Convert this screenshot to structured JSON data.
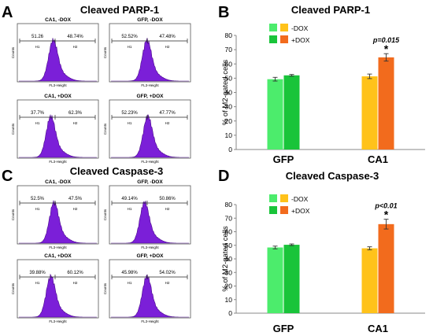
{
  "panels": [
    {
      "letter": "A",
      "title": "Cleaved PARP-1"
    },
    {
      "letter": "B",
      "title": "Cleaved PARP-1"
    },
    {
      "letter": "C",
      "title": "Cleaved Caspase-3"
    },
    {
      "letter": "D",
      "title": "Cleaved Caspase-3"
    }
  ],
  "histogram_axes": {
    "x_label": "FL3-Height",
    "y_label": "Counts",
    "gate_left": "H1",
    "gate_right": "H2"
  },
  "histograms": [
    {
      "panel": "A",
      "title": "CA1, -DOX",
      "left_pct": "51.26",
      "right_pct": "48.74%"
    },
    {
      "panel": "A",
      "title": "GFP, -DOX",
      "left_pct": "52.52%",
      "right_pct": "47.48%"
    },
    {
      "panel": "A",
      "title": "CA1, +DOX",
      "left_pct": "37.7%",
      "right_pct": "62.3%"
    },
    {
      "panel": "A",
      "title": "GFP, +DOX",
      "left_pct": "52.23%",
      "right_pct": "47.77%"
    },
    {
      "panel": "C",
      "title": "CA1, -DOX",
      "left_pct": "52.5%",
      "right_pct": "47.5%"
    },
    {
      "panel": "C",
      "title": "GFP, -DOX",
      "left_pct": "49.14%",
      "right_pct": "50.86%"
    },
    {
      "panel": "C",
      "title": "CA1, +DOX",
      "left_pct": "39.88%",
      "right_pct": "60.12%"
    },
    {
      "panel": "C",
      "title": "GFP, +DOX",
      "left_pct": "45.98%",
      "right_pct": "54.02%"
    }
  ],
  "legend": {
    "minus": "-DOX",
    "plus": "+DOX"
  },
  "colors": {
    "gfp_minus": "#4cec6c",
    "gfp_plus": "#19c43a",
    "ca1_minus": "#ffc21a",
    "ca1_plus": "#f26b1d",
    "histogram": "#7b1fd8",
    "histogram_dark": "#4a0a8a"
  },
  "chart_data": [
    {
      "type": "bar",
      "panel": "B",
      "title": "Cleaved PARP-1",
      "xlabel": "",
      "ylabel": "% of M2-gated cells",
      "ylim": [
        0,
        80
      ],
      "yticks": [
        0,
        10,
        20,
        30,
        40,
        50,
        60,
        70,
        80
      ],
      "categories": [
        "GFP",
        "CA1"
      ],
      "series": [
        {
          "name": "-DOX",
          "values": [
            49.3,
            51.3
          ],
          "errors": [
            1.3,
            1.6
          ]
        },
        {
          "name": "+DOX",
          "values": [
            52,
            64.6
          ],
          "errors": [
            0.6,
            2.6
          ]
        }
      ],
      "annotation": {
        "text": "p=0.015",
        "star": "*"
      },
      "legend": "top-left",
      "grid": false
    },
    {
      "type": "bar",
      "panel": "D",
      "title": "Cleaved Caspase-3",
      "xlabel": "",
      "ylabel": "% of M2-gated cells",
      "ylim": [
        0,
        80
      ],
      "yticks": [
        0,
        10,
        20,
        30,
        40,
        50,
        60,
        70,
        80
      ],
      "categories": [
        "GFP",
        "CA1"
      ],
      "series": [
        {
          "name": "-DOX",
          "values": [
            48.4,
            47.8
          ],
          "errors": [
            1,
            1.1
          ]
        },
        {
          "name": "+DOX",
          "values": [
            50.4,
            65.6
          ],
          "errors": [
            0.6,
            3.6
          ]
        }
      ],
      "annotation": {
        "text": "p<0.01",
        "star": "*"
      },
      "legend": "top-left",
      "grid": false
    }
  ]
}
